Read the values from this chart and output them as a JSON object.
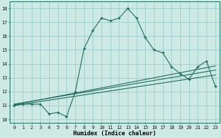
{
  "xlabel": "Humidex (Indice chaleur)",
  "xlim": [
    -0.5,
    23.5
  ],
  "ylim": [
    9.75,
    18.5
  ],
  "xticks": [
    0,
    1,
    2,
    3,
    4,
    5,
    6,
    7,
    8,
    9,
    10,
    11,
    12,
    13,
    14,
    15,
    16,
    17,
    18,
    19,
    20,
    21,
    22,
    23
  ],
  "yticks": [
    10,
    11,
    12,
    13,
    14,
    15,
    16,
    17,
    18
  ],
  "bg_color": "#cce9e4",
  "grid_color": "#99cccc",
  "line_color": "#1a6b5a",
  "main_x": [
    0,
    1,
    2,
    3,
    4,
    5,
    6,
    7,
    8,
    9,
    10,
    11,
    12,
    13,
    14,
    15,
    16,
    17,
    18,
    19,
    20,
    21,
    22,
    23
  ],
  "main_y": [
    11.0,
    11.1,
    11.1,
    11.1,
    10.4,
    10.5,
    10.2,
    12.0,
    15.1,
    16.4,
    17.3,
    17.1,
    17.3,
    18.0,
    17.3,
    15.9,
    15.0,
    14.8,
    13.8,
    13.3,
    12.9,
    13.8,
    14.2,
    12.4
  ],
  "line1_x": [
    0,
    23
  ],
  "line1_y": [
    11.0,
    13.2
  ],
  "line2_x": [
    0,
    23
  ],
  "line2_y": [
    11.1,
    13.55
  ],
  "line3_x": [
    0,
    23
  ],
  "line3_y": [
    11.05,
    13.85
  ],
  "tick_fontsize": 5.0,
  "xlabel_fontsize": 6.0
}
